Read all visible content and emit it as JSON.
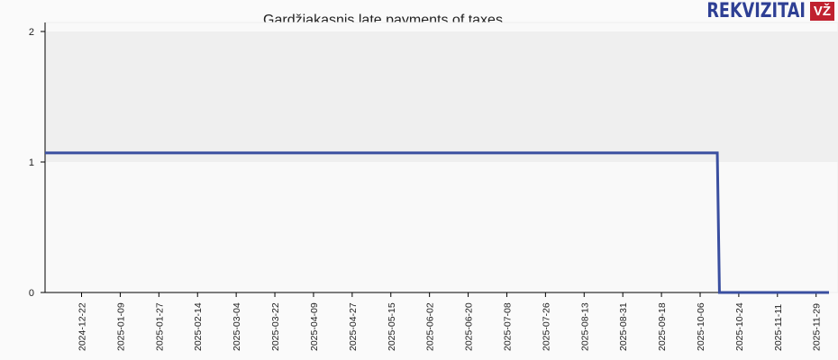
{
  "chart_data": {
    "type": "line",
    "title": "Gardžiakąsnis late payments of taxes",
    "xlabel": "",
    "ylabel": "",
    "ylim": [
      0,
      2
    ],
    "yticks": [
      0,
      1,
      2
    ],
    "xlim": [
      "2024-12-05",
      "2025-12-05"
    ],
    "xticks": [
      "2024-12-22",
      "2025-01-09",
      "2025-01-27",
      "2025-02-14",
      "2025-03-04",
      "2025-03-22",
      "2025-04-09",
      "2025-04-27",
      "2025-05-15",
      "2025-06-02",
      "2025-06-20",
      "2025-07-08",
      "2025-07-26",
      "2025-08-13",
      "2025-08-31",
      "2025-09-18",
      "2025-10-06",
      "2025-10-24",
      "2025-11-11",
      "2025-11-29"
    ],
    "grid": false,
    "shaded_band": [
      1,
      2
    ],
    "series": [
      {
        "color": "#3a4fa0",
        "points": [
          [
            "2024-12-05",
            1.07
          ],
          [
            "2025-10-14",
            1.07
          ],
          [
            "2025-10-15",
            0
          ],
          [
            "2025-12-05",
            0
          ]
        ]
      }
    ]
  },
  "logo": {
    "text": "REKVIZITAI",
    "badge": "VŽ"
  },
  "colors": {
    "band": "#efefef",
    "line": "#3a4fa0",
    "brand": "#2e3f94",
    "badge": "#c0212f"
  }
}
